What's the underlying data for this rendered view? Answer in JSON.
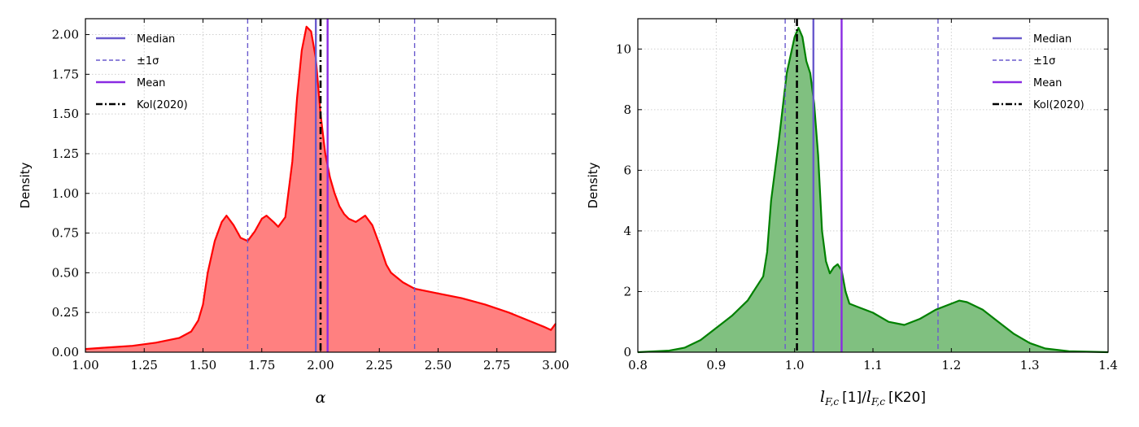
{
  "colors": {
    "median": "#6a5acd",
    "sigma": "#6a5acd",
    "mean": "#8a2be2",
    "kol": "#000000",
    "left_line": "#ff0000",
    "left_fill": "#ff8080",
    "right_line": "#008000",
    "right_fill": "#80c080"
  },
  "chart_data": [
    {
      "type": "area",
      "ylabel": "Density",
      "xlabel": "α",
      "xlim": [
        1.0,
        3.0
      ],
      "ylim": [
        0.0,
        2.1
      ],
      "xticks": [
        "1.00",
        "1.25",
        "1.50",
        "1.75",
        "2.00",
        "2.25",
        "2.50",
        "2.75",
        "3.00"
      ],
      "xtick_values": [
        1.0,
        1.25,
        1.5,
        1.75,
        2.0,
        2.25,
        2.5,
        2.75,
        3.0
      ],
      "yticks": [
        "0.00",
        "0.25",
        "0.50",
        "0.75",
        "1.00",
        "1.25",
        "1.50",
        "1.75",
        "2.00"
      ],
      "ytick_values": [
        0,
        0.25,
        0.5,
        0.75,
        1.0,
        1.25,
        1.5,
        1.75,
        2.0
      ],
      "grid": true,
      "legend_position": "top-left",
      "legend": [
        "Median",
        "±1σ",
        "Mean",
        "Kol(2020)"
      ],
      "series": [
        {
          "x": [
            1.0,
            1.1,
            1.2,
            1.3,
            1.4,
            1.45,
            1.48,
            1.5,
            1.52,
            1.55,
            1.58,
            1.6,
            1.63,
            1.66,
            1.69,
            1.72,
            1.75,
            1.77,
            1.8,
            1.82,
            1.85,
            1.88,
            1.9,
            1.92,
            1.94,
            1.96,
            1.98,
            2.0,
            2.02,
            2.04,
            2.06,
            2.08,
            2.1,
            2.12,
            2.15,
            2.17,
            2.19,
            2.22,
            2.25,
            2.28,
            2.3,
            2.35,
            2.4,
            2.5,
            2.6,
            2.7,
            2.8,
            2.9,
            2.95,
            2.98,
            3.0
          ],
          "y": [
            0.02,
            0.03,
            0.04,
            0.06,
            0.09,
            0.13,
            0.2,
            0.3,
            0.5,
            0.7,
            0.82,
            0.86,
            0.8,
            0.72,
            0.7,
            0.76,
            0.84,
            0.86,
            0.82,
            0.79,
            0.85,
            1.2,
            1.6,
            1.9,
            2.05,
            2.02,
            1.85,
            1.5,
            1.25,
            1.1,
            1.0,
            0.92,
            0.87,
            0.84,
            0.82,
            0.84,
            0.86,
            0.8,
            0.68,
            0.55,
            0.5,
            0.44,
            0.4,
            0.37,
            0.34,
            0.3,
            0.25,
            0.19,
            0.16,
            0.14,
            0.18
          ]
        }
      ],
      "vlines": {
        "median": 1.98,
        "sigma_low": 1.69,
        "sigma_high": 2.4,
        "mean": 2.03,
        "kol": 2.0
      }
    },
    {
      "type": "area",
      "ylabel": "Density",
      "xlabel_math": "l_F,c [1]/l_F,c",
      "xlabel_parts": [
        "l",
        "F,c",
        "[1]/",
        "l",
        "F,c",
        "[K20]"
      ],
      "xlim": [
        0.8,
        1.4
      ],
      "ylim": [
        0,
        11
      ],
      "xticks": [
        "0.8",
        "0.9",
        "1.0",
        "1.1",
        "1.2",
        "1.3",
        "1.4"
      ],
      "xtick_values": [
        0.8,
        0.9,
        1.0,
        1.1,
        1.2,
        1.3,
        1.4
      ],
      "yticks": [
        "0",
        "2",
        "4",
        "6",
        "8",
        "10"
      ],
      "ytick_values": [
        0,
        2,
        4,
        6,
        8,
        10
      ],
      "grid": true,
      "legend_position": "top-right",
      "legend": [
        "Median",
        "±1σ",
        "Mean",
        "Kol(2020)"
      ],
      "series": [
        {
          "x": [
            0.8,
            0.84,
            0.86,
            0.88,
            0.9,
            0.92,
            0.94,
            0.96,
            0.965,
            0.97,
            0.98,
            0.99,
            1.0,
            1.005,
            1.01,
            1.015,
            1.02,
            1.025,
            1.03,
            1.035,
            1.04,
            1.045,
            1.05,
            1.055,
            1.06,
            1.065,
            1.07,
            1.08,
            1.1,
            1.12,
            1.14,
            1.16,
            1.18,
            1.2,
            1.21,
            1.22,
            1.24,
            1.26,
            1.28,
            1.3,
            1.32,
            1.35,
            1.4
          ],
          "y": [
            0.0,
            0.05,
            0.15,
            0.4,
            0.8,
            1.2,
            1.7,
            2.5,
            3.3,
            5.0,
            7.0,
            9.2,
            10.4,
            10.7,
            10.4,
            9.6,
            9.2,
            8.2,
            6.5,
            4.0,
            3.0,
            2.6,
            2.8,
            2.9,
            2.7,
            2.0,
            1.6,
            1.5,
            1.3,
            1.0,
            0.9,
            1.1,
            1.4,
            1.6,
            1.7,
            1.65,
            1.4,
            1.0,
            0.6,
            0.3,
            0.12,
            0.03,
            0.0
          ]
        }
      ],
      "vlines": {
        "median": 1.024,
        "sigma_low": 0.988,
        "sigma_high": 1.183,
        "mean": 1.06,
        "kol": 1.003
      }
    }
  ]
}
